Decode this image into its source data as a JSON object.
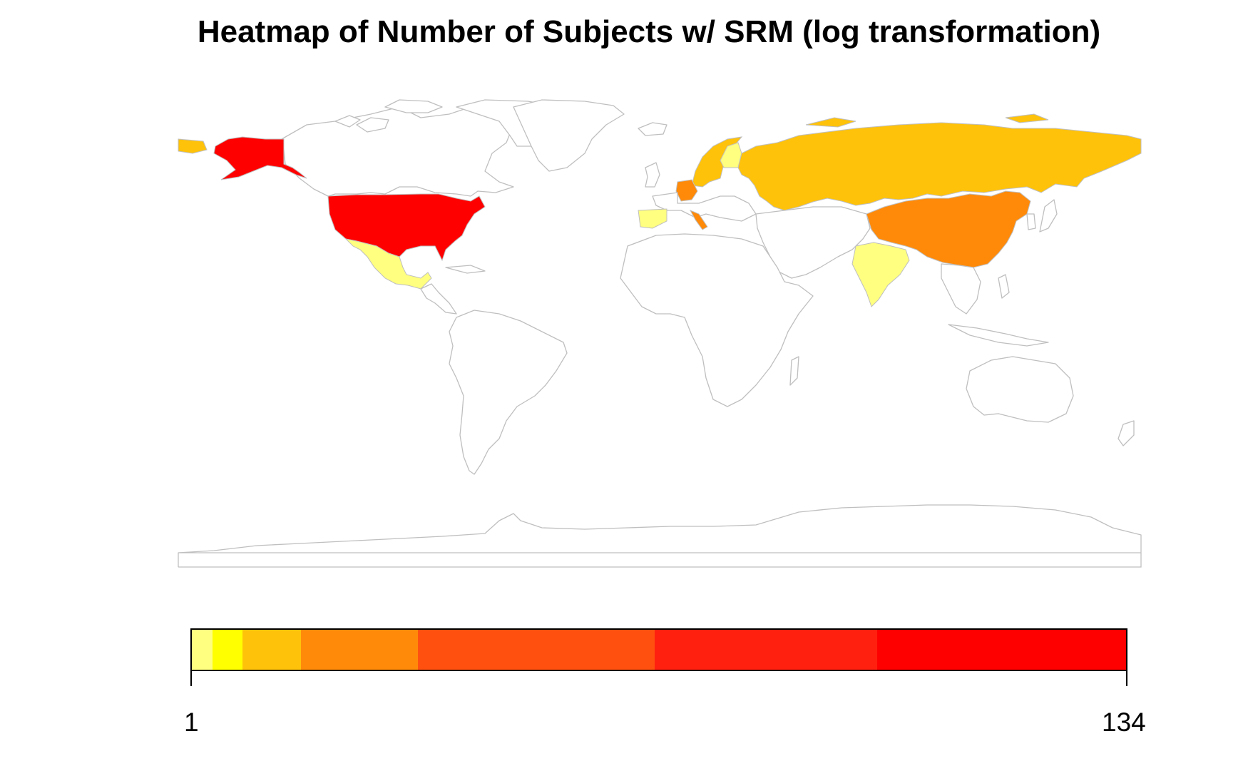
{
  "title": "Heatmap of Number of Subjects w/ SRM (log transformation)",
  "legend": {
    "min_label": "1",
    "max_label": "134",
    "scale": "log",
    "bins": [
      {
        "color": "#ffff80",
        "from": 1,
        "to": 1.4
      },
      {
        "color": "#ffff00",
        "from": 1.4,
        "to": 2.1
      },
      {
        "color": "#ffc20a",
        "from": 2.1,
        "to": 3.4
      },
      {
        "color": "#ff8a0a",
        "from": 3.4,
        "to": 6.5
      },
      {
        "color": "#ff5010",
        "from": 6.5,
        "to": 14.6
      },
      {
        "color": "#ff2010",
        "from": 14.6,
        "to": 48
      },
      {
        "color": "#ff0000",
        "from": 48,
        "to": 134
      }
    ]
  },
  "colors": {
    "no_data_fill": "#ffffff",
    "border": "#bfbfbf"
  },
  "chart_data": {
    "type": "heatmap",
    "title": "Heatmap of Number of Subjects w/ SRM (log transformation)",
    "scale": "log",
    "range": [
      1,
      134
    ],
    "regions": [
      {
        "name": "United States",
        "color": "#ff0000"
      },
      {
        "name": "China",
        "color": "#ff8a0a"
      },
      {
        "name": "Germany",
        "color": "#ff8a0a"
      },
      {
        "name": "Russia",
        "color": "#ffc20a"
      },
      {
        "name": "Sweden",
        "color": "#ffc20a"
      },
      {
        "name": "Norway",
        "color": "#ffc20a"
      },
      {
        "name": "Finland",
        "color": "#ffff80"
      },
      {
        "name": "Spain",
        "color": "#ffff80"
      },
      {
        "name": "India",
        "color": "#ffff80"
      },
      {
        "name": "Mexico",
        "color": "#ffff80"
      }
    ]
  }
}
